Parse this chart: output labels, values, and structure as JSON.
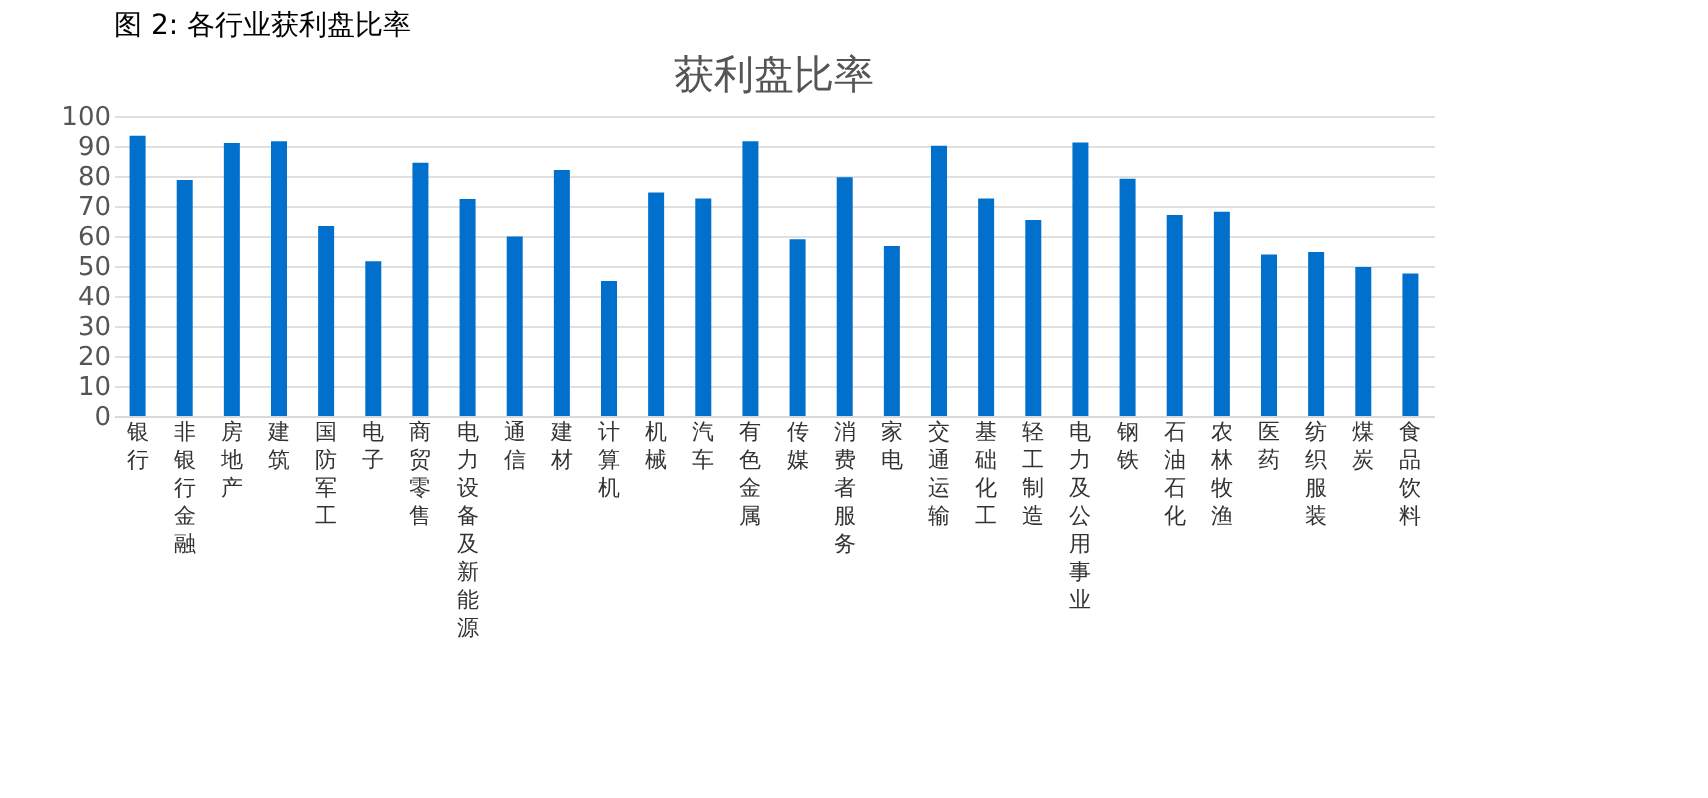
{
  "chart_data": {
    "type": "bar",
    "title": "获利盘比率",
    "annotations": [
      "图 2: 各行业获利盘比率"
    ],
    "categories": [
      "银行",
      "非银行金融",
      "房地产",
      "建筑",
      "国防军工",
      "电子",
      "商贸零售",
      "电力设备及新能源",
      "通信",
      "建材",
      "计算机",
      "机械",
      "汽车",
      "有色金属",
      "传媒",
      "消费者服务",
      "家电",
      "交通运输",
      "基础化工",
      "轻工制造",
      "电力及公用事业",
      "钢铁",
      "石油石化",
      "农林牧渔",
      "医药",
      "纺织服装",
      "煤炭",
      "食品饮料"
    ],
    "values": [
      93.4,
      78.7,
      91,
      91.6,
      63.3,
      51.6,
      84.4,
      72.3,
      59.8,
      82,
      45,
      74.5,
      72.5,
      91.6,
      58.9,
      79.6,
      56.7,
      90.1,
      72.5,
      65.3,
      91.2,
      79.1,
      67,
      68.1,
      53.8,
      54.7,
      49.7,
      47.5
    ],
    "color": "#0070cc",
    "ylim": [
      0,
      100
    ],
    "yticks": [
      0,
      10,
      20,
      30,
      40,
      50,
      60,
      70,
      80,
      90,
      100
    ],
    "grid": "y"
  }
}
